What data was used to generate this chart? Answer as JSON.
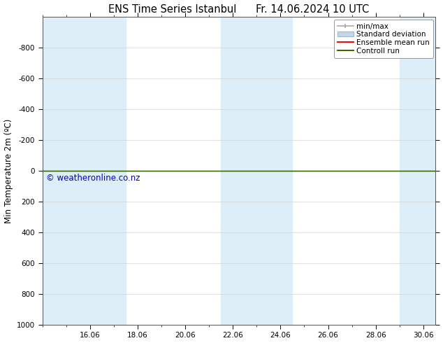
{
  "title": "ENS Time Series Istanbul      Fr. 14.06.2024 10 UTC",
  "ylabel": "Min Temperature 2m (ºC)",
  "background_color": "#ffffff",
  "plot_bg_color": "#ffffff",
  "ylim_bottom": 1000,
  "ylim_top": -1000,
  "xlim_start": 14.0,
  "xlim_end": 30.5,
  "xticks": [
    16.0,
    18.0,
    20.0,
    22.0,
    24.0,
    26.0,
    28.0,
    30.0
  ],
  "xticklabels": [
    "16.06",
    "18.06",
    "20.06",
    "22.06",
    "24.06",
    "26.06",
    "28.06",
    "30.06"
  ],
  "yticks": [
    -800,
    -600,
    -400,
    -200,
    0,
    200,
    400,
    600,
    800,
    1000
  ],
  "shade_bands": [
    [
      14.0,
      15.0
    ],
    [
      15.0,
      17.5
    ],
    [
      21.5,
      24.5
    ],
    [
      29.0,
      30.5
    ]
  ],
  "shade_color": "#ddeef8",
  "line_y": 0.0,
  "ensemble_mean_color": "#ff0000",
  "control_run_color": "#336600",
  "minmax_color": "#aaaaaa",
  "std_dev_color": "#c0d8ea",
  "watermark": "© weatheronline.co.nz",
  "watermark_color": "#0000cc",
  "watermark_fontsize": 8.5,
  "title_fontsize": 10.5,
  "tick_fontsize": 7.5,
  "ylabel_fontsize": 8.5,
  "legend_fontsize": 7.5,
  "legend_entries": [
    "min/max",
    "Standard deviation",
    "Ensemble mean run",
    "Controll run"
  ],
  "legend_colors": [
    "#aaaaaa",
    "#c0d8ea",
    "#ff0000",
    "#336600"
  ]
}
